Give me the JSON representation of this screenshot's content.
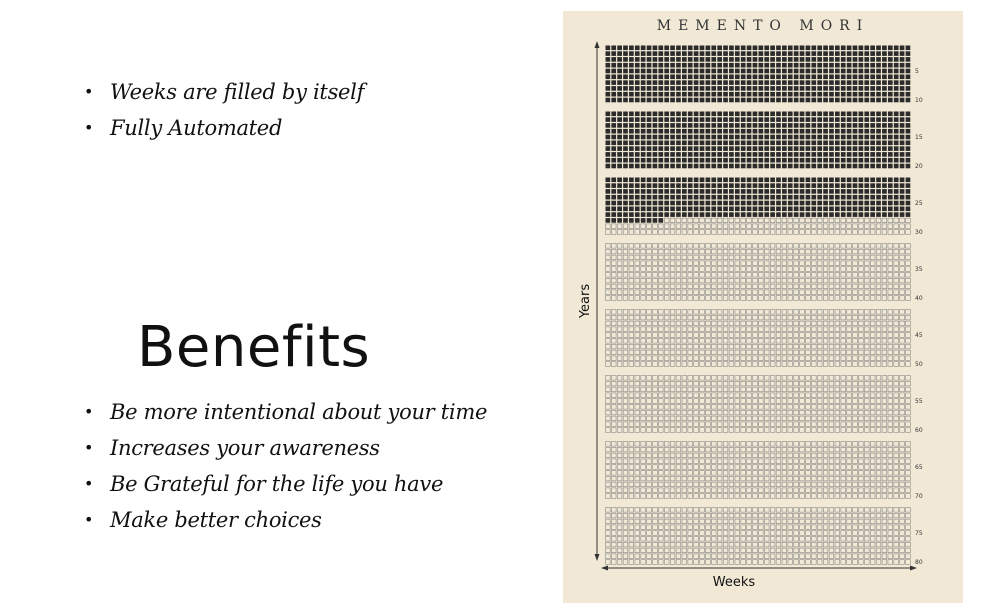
{
  "features": [
    "Weeks are filled by itself",
    "Fully Automated"
  ],
  "benefits_title": "Benefits",
  "benefits": [
    "Be more intentional about your time",
    "Increases your awareness",
    "Be Grateful for the life you have",
    "Make better choices"
  ],
  "poster": {
    "title": "MEMENTO MORI",
    "y_axis_label": "Years",
    "x_axis_label": "Weeks",
    "total_years": 80,
    "weeks_per_year": 52,
    "years_per_block": 10,
    "filled_full_years": 27,
    "filled_weeks_in_current_year": 10,
    "year_labels": [
      "5",
      "10",
      "15",
      "20",
      "25",
      "30",
      "35",
      "40",
      "45",
      "50",
      "55",
      "60",
      "65",
      "70",
      "75",
      "80"
    ],
    "colors": {
      "background": "#f1e9d6",
      "filled": "#2b2b2b",
      "empty_stroke": "#777777",
      "text": "#333333"
    }
  }
}
